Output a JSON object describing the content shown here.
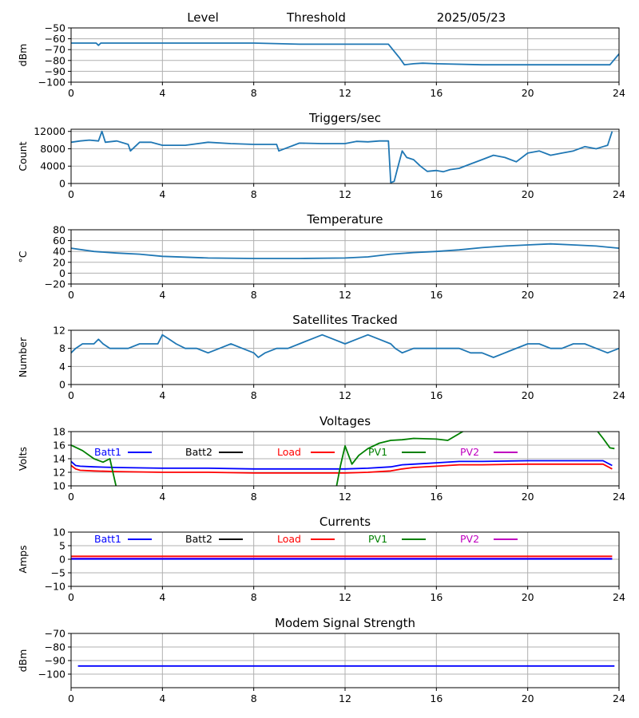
{
  "colors": {
    "default": "#1f77b4",
    "Batt1": "#0000ff",
    "Batt2": "#000000",
    "Load": "#ff0000",
    "PV1": "#008000",
    "PV2": "#bf00bf",
    "grid": "#b0b0b0"
  },
  "chart_data": [
    {
      "type": "line",
      "id": "level",
      "title": "",
      "header_labels": [
        "Level",
        "Threshold",
        "2025/05/23"
      ],
      "xlabel": "",
      "ylabel": "dBm",
      "xlim": [
        0,
        24
      ],
      "ylim": [
        -100,
        -50
      ],
      "xticks": [
        0,
        4,
        8,
        12,
        16,
        20,
        24
      ],
      "yticks": [
        -100,
        -90,
        -80,
        -70,
        -60,
        -50
      ],
      "grid": true,
      "series": [
        {
          "color": "#1f77b4",
          "x": [
            0,
            1.1,
            1.2,
            1.3,
            1.6,
            4,
            8,
            10,
            12,
            13.9,
            14.4,
            14.6,
            15,
            15.4,
            16,
            18,
            20,
            22,
            23.6,
            24
          ],
          "y": [
            -64,
            -64,
            -66,
            -64,
            -64,
            -64,
            -64,
            -65,
            -65,
            -65,
            -78,
            -84,
            -83,
            -82.5,
            -83,
            -84,
            -84,
            -84,
            -84,
            -74
          ]
        }
      ]
    },
    {
      "type": "line",
      "id": "triggers",
      "title": "Triggers/sec",
      "xlabel": "",
      "ylabel": "Count",
      "xlim": [
        0,
        24
      ],
      "ylim": [
        0,
        12500
      ],
      "xticks": [
        0,
        4,
        8,
        12,
        16,
        20,
        24
      ],
      "yticks": [
        0,
        4000,
        8000,
        12000
      ],
      "grid": true,
      "series": [
        {
          "color": "#1f77b4",
          "x": [
            0,
            0.4,
            0.8,
            1.2,
            1.35,
            1.5,
            2,
            2.5,
            2.6,
            3,
            3.5,
            4,
            5,
            6,
            7,
            8,
            9,
            9.1,
            10,
            11,
            12,
            12.5,
            13,
            13.5,
            13.9,
            14,
            14.15,
            14.3,
            14.5,
            14.7,
            15,
            15.3,
            15.6,
            16,
            16.3,
            16.6,
            17,
            17.5,
            18,
            18.5,
            19,
            19.5,
            20,
            20.5,
            21,
            21.5,
            22,
            22.5,
            23,
            23.3,
            23.5,
            23.7
          ],
          "y": [
            9500,
            9800,
            10000,
            9800,
            12000,
            9500,
            9800,
            9000,
            7500,
            9500,
            9500,
            8800,
            8800,
            9500,
            9200,
            9000,
            9000,
            7500,
            9300,
            9200,
            9200,
            9700,
            9600,
            9800,
            9800,
            200,
            500,
            3500,
            7500,
            6000,
            5500,
            4000,
            2800,
            3000,
            2700,
            3200,
            3500,
            4500,
            5500,
            6500,
            6000,
            5000,
            7000,
            7500,
            6500,
            7000,
            7500,
            8500,
            8000,
            8500,
            8800,
            12000
          ]
        }
      ]
    },
    {
      "type": "line",
      "id": "temperature",
      "title": "Temperature",
      "xlabel": "",
      "ylabel": "°C",
      "xlim": [
        0,
        24
      ],
      "ylim": [
        -20,
        80
      ],
      "xticks": [
        0,
        4,
        8,
        12,
        16,
        20,
        24
      ],
      "yticks": [
        -20,
        0,
        20,
        40,
        60,
        80
      ],
      "grid": true,
      "series": [
        {
          "color": "#1f77b4",
          "x": [
            0,
            1,
            2,
            3,
            4,
            6,
            8,
            10,
            12,
            13,
            14,
            15,
            16,
            17,
            18,
            19,
            20,
            21,
            22,
            23,
            24
          ],
          "y": [
            46,
            40,
            37,
            35,
            31,
            28,
            27,
            27,
            28,
            30,
            35,
            38,
            40,
            43,
            47,
            50,
            52,
            54,
            52,
            50,
            46
          ]
        }
      ]
    },
    {
      "type": "line",
      "id": "satellites",
      "title": "Satellites Tracked",
      "xlabel": "",
      "ylabel": "Number",
      "xlim": [
        0,
        24
      ],
      "ylim": [
        0,
        12
      ],
      "xticks": [
        0,
        4,
        8,
        12,
        16,
        20,
        24
      ],
      "yticks": [
        0,
        4,
        8,
        12
      ],
      "grid": true,
      "series": [
        {
          "color": "#1f77b4",
          "x": [
            0,
            0.2,
            0.5,
            1,
            1.2,
            1.4,
            1.7,
            2.5,
            3,
            3.8,
            4,
            4.3,
            4.6,
            5,
            5.5,
            6,
            6.5,
            7,
            7.5,
            8,
            8.2,
            8.5,
            9,
            9.5,
            10,
            10.5,
            11,
            11.5,
            12,
            12.5,
            13,
            13.5,
            14,
            14.2,
            14.5,
            15,
            16,
            16.5,
            17,
            17.5,
            18,
            18.5,
            19,
            20,
            20.5,
            21,
            21.5,
            22,
            22.5,
            23,
            23.5,
            24
          ],
          "y": [
            7,
            8,
            9,
            9,
            10,
            9,
            8,
            8,
            9,
            9,
            11,
            10,
            9,
            8,
            8,
            7,
            8,
            9,
            8,
            7,
            6,
            7,
            8,
            8,
            9,
            10,
            11,
            10,
            9,
            10,
            11,
            10,
            9,
            8,
            7,
            8,
            8,
            8,
            8,
            7,
            7,
            6,
            7,
            9,
            9,
            8,
            8,
            9,
            9,
            8,
            7,
            8
          ]
        }
      ]
    },
    {
      "type": "line",
      "id": "voltages",
      "title": "Voltages",
      "xlabel": "",
      "ylabel": "Volts",
      "xlim": [
        0,
        24
      ],
      "ylim": [
        10,
        18
      ],
      "xticks": [
        0,
        4,
        8,
        12,
        16,
        20,
        24
      ],
      "yticks": [
        10,
        12,
        14,
        16,
        18
      ],
      "grid": true,
      "legend": [
        "Batt1",
        "Batt2",
        "Load",
        "PV1",
        "PV2"
      ],
      "series": [
        {
          "name": "Batt1",
          "color": "#0000ff",
          "x": [
            0,
            0.2,
            0.4,
            1,
            2,
            4,
            6,
            8,
            10,
            12,
            13,
            14,
            14.5,
            15,
            16,
            17,
            18,
            20,
            23.3,
            23.7
          ],
          "y": [
            13.6,
            13.0,
            12.9,
            12.8,
            12.7,
            12.6,
            12.6,
            12.5,
            12.5,
            12.5,
            12.6,
            12.8,
            13.1,
            13.2,
            13.4,
            13.6,
            13.6,
            13.7,
            13.7,
            13.0
          ]
        },
        {
          "name": "Load",
          "color": "#ff0000",
          "x": [
            0,
            0.2,
            0.4,
            1,
            2,
            4,
            6,
            8,
            10,
            12,
            13,
            14,
            14.5,
            15,
            16,
            17,
            18,
            20,
            23.3,
            23.7
          ],
          "y": [
            13.0,
            12.5,
            12.3,
            12.2,
            12.1,
            12.0,
            12.0,
            11.9,
            11.9,
            11.9,
            12.0,
            12.2,
            12.5,
            12.7,
            12.9,
            13.1,
            13.1,
            13.2,
            13.2,
            12.5
          ]
        },
        {
          "name": "PV1",
          "color": "#008000",
          "x": [
            0,
            0.5,
            1,
            1.4,
            1.7,
            1.8,
            2.0,
            11.6,
            11.8,
            12,
            12.3,
            12.6,
            13,
            13.5,
            14,
            14.5,
            15,
            16,
            16.5,
            17.3,
            23,
            23.3,
            23.6,
            23.8
          ],
          "y": [
            16,
            15.2,
            14.0,
            13.5,
            14.0,
            12.5,
            9.5,
            9.5,
            13.0,
            15.9,
            13.2,
            14.5,
            15.5,
            16.3,
            16.7,
            16.8,
            17.0,
            16.9,
            16.7,
            18.3,
            18.3,
            17.0,
            15.6,
            15.5
          ]
        }
      ]
    },
    {
      "type": "line",
      "id": "currents",
      "title": "Currents",
      "xlabel": "",
      "ylabel": "Amps",
      "xlim": [
        0,
        24
      ],
      "ylim": [
        -10,
        10
      ],
      "xticks": [
        0,
        4,
        8,
        12,
        16,
        20,
        24
      ],
      "yticks": [
        -10,
        -5,
        0,
        5,
        10
      ],
      "grid": true,
      "legend": [
        "Batt1",
        "Batt2",
        "Load",
        "PV1",
        "PV2"
      ],
      "series": [
        {
          "name": "Load",
          "color": "#ff0000",
          "x": [
            0,
            4,
            8,
            12,
            16,
            20,
            23.7
          ],
          "y": [
            1.1,
            1.1,
            1.1,
            1.1,
            1.1,
            1.1,
            1.1
          ]
        },
        {
          "name": "PV2",
          "color": "#bf00bf",
          "x": [
            0,
            4,
            8,
            12,
            16,
            20,
            23.7
          ],
          "y": [
            0.3,
            0.3,
            0.3,
            0.3,
            0.3,
            0.3,
            0.3
          ]
        },
        {
          "name": "Batt1",
          "color": "#0000ff",
          "x": [
            0,
            4,
            8,
            12,
            16,
            20,
            23.7
          ],
          "y": [
            0.1,
            0.1,
            0.1,
            0.1,
            0.1,
            0.1,
            0.1
          ]
        }
      ]
    },
    {
      "type": "line",
      "id": "modem",
      "title": "Modem Signal Strength",
      "xlabel": "",
      "ylabel": "dBm",
      "xlim": [
        0,
        24
      ],
      "ylim": [
        -110,
        -70
      ],
      "xticks": [
        0,
        4,
        8,
        12,
        16,
        20,
        24
      ],
      "yticks": [
        -100,
        -90,
        -80,
        -70
      ],
      "grid": true,
      "series": [
        {
          "color": "#0000ff",
          "x": [
            0.3,
            23.8
          ],
          "y": [
            -94,
            -94
          ]
        }
      ]
    }
  ]
}
